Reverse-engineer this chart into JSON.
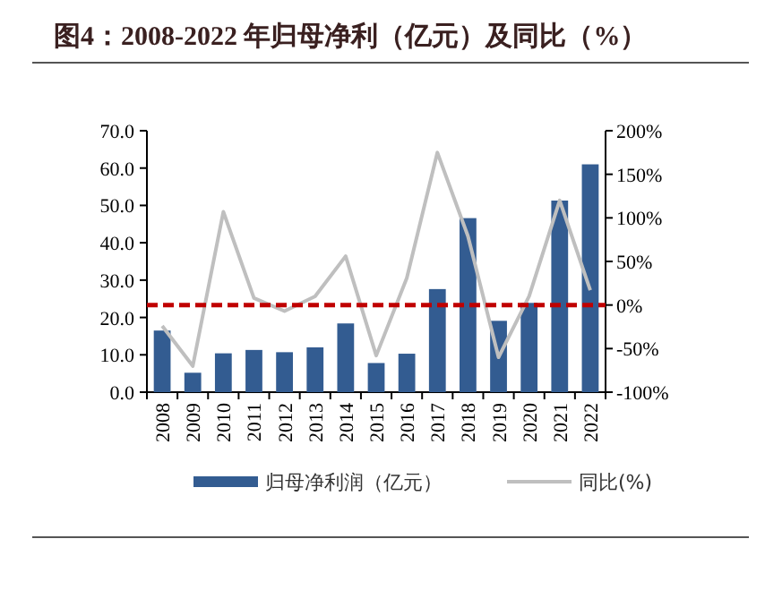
{
  "chart_data": {
    "type": "bar",
    "title": "图4：2008-2022 年归母净利（亿元）及同比（%）",
    "categories": [
      "2008",
      "2009",
      "2010",
      "2011",
      "2012",
      "2013",
      "2014",
      "2015",
      "2016",
      "2017",
      "2018",
      "2019",
      "2020",
      "2021",
      "2022"
    ],
    "series": [
      {
        "name": "归母净利润（亿元）",
        "color": "#335c91",
        "values": [
          16.5,
          5.2,
          10.4,
          11.3,
          10.7,
          12.0,
          18.4,
          7.8,
          10.3,
          27.6,
          46.6,
          19.1,
          23.9,
          51.3,
          61.0
        ]
      },
      {
        "name": "同比(%)",
        "type": "line",
        "axis": "y2",
        "color": "#bfbfbf",
        "values": [
          -24,
          -70,
          107,
          8,
          -7,
          10,
          56,
          -58,
          31,
          175,
          79,
          -60,
          10,
          120,
          17
        ]
      }
    ],
    "ylim": [
      0,
      70
    ],
    "yticks": [
      {
        "value": 0,
        "label": "0.0"
      },
      {
        "value": 10,
        "label": "10.0"
      },
      {
        "value": 20,
        "label": "20.0"
      },
      {
        "value": 30,
        "label": "30.0"
      },
      {
        "value": 40,
        "label": "40.0"
      },
      {
        "value": 50,
        "label": "50.0"
      },
      {
        "value": 60,
        "label": "60.0"
      },
      {
        "value": 70,
        "label": "70.0"
      }
    ],
    "y2lim": [
      -100,
      200
    ],
    "y2ticks": [
      {
        "value": -100,
        "label": "-100%"
      },
      {
        "value": -50,
        "label": "-50%"
      },
      {
        "value": 0,
        "label": "0%"
      },
      {
        "value": 50,
        "label": "50%"
      },
      {
        "value": 100,
        "label": "100%"
      },
      {
        "value": 150,
        "label": "150%"
      },
      {
        "value": 200,
        "label": "200%"
      }
    ],
    "ref_lines": [
      {
        "axis": "y2",
        "value": 0,
        "color": "#c00000",
        "line_style": "dashed"
      }
    ],
    "legend": "bottom"
  }
}
